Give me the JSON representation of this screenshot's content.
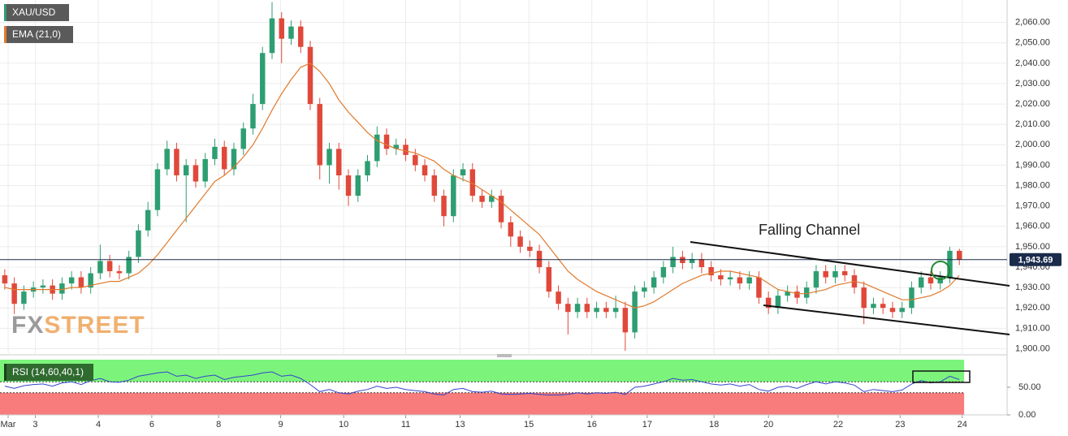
{
  "chart_data": [
    {
      "type": "candlestick",
      "name": "XAU/USD",
      "up_color": "#2e9e72",
      "down_color": "#e0483a",
      "open": [
        1936,
        1932,
        1922,
        1928,
        1930,
        1931,
        1927,
        1932,
        1935,
        1930,
        1937,
        1943,
        1938,
        1937,
        1945,
        1958,
        1968,
        1988,
        1998,
        1985,
        1990,
        1982,
        1993,
        1999,
        1988,
        1998,
        2008,
        2020,
        2045,
        2062,
        2052,
        2058,
        2048,
        2020,
        1990,
        1998,
        1985,
        1975,
        1985,
        1992,
        2005,
        1998,
        2000,
        1995,
        1990,
        1985,
        1975,
        1965,
        1985,
        1988,
        1975,
        1972,
        1975,
        1962,
        1955,
        1950,
        1948,
        1940,
        1928,
        1922,
        1918,
        1922,
        1918,
        1920,
        1918,
        1920,
        1908,
        1928,
        1930,
        1935,
        1940,
        1945,
        1942,
        1944,
        1940,
        1936,
        1934,
        1935,
        1932,
        1935,
        1925,
        1920,
        1926,
        1928,
        1925,
        1930,
        1938,
        1935,
        1938,
        1936,
        1930,
        1920,
        1922,
        1920,
        1918,
        1920,
        1930,
        1935,
        1932,
        1935,
        1948
      ],
      "high": [
        1939,
        1935,
        1931,
        1933,
        1934,
        1934,
        1935,
        1938,
        1938,
        1940,
        1951,
        1946,
        1941,
        1948,
        1961,
        1972,
        1991,
        2002,
        2001,
        1993,
        1993,
        1996,
        2003,
        2002,
        2001,
        2011,
        2025,
        2048,
        2070,
        2065,
        2061,
        2061,
        2051,
        2023,
        2001,
        2001,
        1988,
        1988,
        1995,
        2009,
        2008,
        2003,
        2003,
        1998,
        1993,
        1988,
        1978,
        1988,
        1991,
        1991,
        1978,
        1978,
        1978,
        1965,
        1958,
        1953,
        1951,
        1943,
        1931,
        1925,
        1925,
        1925,
        1923,
        1923,
        1926,
        1923,
        1931,
        1933,
        1938,
        1943,
        1950,
        1948,
        1947,
        1947,
        1943,
        1939,
        1938,
        1938,
        1938,
        1938,
        1928,
        1929,
        1931,
        1931,
        1933,
        1941,
        1941,
        1941,
        1941,
        1939,
        1933,
        1925,
        1925,
        1923,
        1923,
        1933,
        1938,
        1938,
        1938,
        1950,
        1949
      ],
      "low": [
        1929,
        1917,
        1919,
        1925,
        1927,
        1924,
        1924,
        1929,
        1927,
        1927,
        1934,
        1935,
        1934,
        1934,
        1942,
        1955,
        1965,
        1985,
        1982,
        1962,
        1979,
        1979,
        1990,
        1985,
        1985,
        1995,
        2005,
        2017,
        2042,
        2040,
        2049,
        2045,
        2017,
        1983,
        1981,
        1978,
        1970,
        1972,
        1982,
        1989,
        1995,
        1995,
        1992,
        1987,
        1982,
        1972,
        1960,
        1962,
        1982,
        1972,
        1969,
        1969,
        1959,
        1950,
        1947,
        1945,
        1937,
        1925,
        1919,
        1907,
        1915,
        1915,
        1915,
        1915,
        1915,
        1899,
        1905,
        1925,
        1927,
        1932,
        1937,
        1939,
        1939,
        1937,
        1933,
        1931,
        1931,
        1929,
        1929,
        1922,
        1917,
        1917,
        1923,
        1922,
        1922,
        1927,
        1932,
        1932,
        1933,
        1927,
        1912,
        1917,
        1917,
        1915,
        1915,
        1917,
        1927,
        1929,
        1929,
        1932,
        1941
      ],
      "close": [
        1932,
        1922,
        1928,
        1930,
        1931,
        1927,
        1932,
        1935,
        1930,
        1937,
        1943,
        1938,
        1937,
        1945,
        1958,
        1968,
        1988,
        1998,
        1985,
        1990,
        1982,
        1993,
        1999,
        1988,
        1998,
        2008,
        2020,
        2045,
        2062,
        2052,
        2058,
        2048,
        2020,
        1990,
        1998,
        1985,
        1975,
        1985,
        1992,
        2005,
        1998,
        2000,
        1995,
        1990,
        1985,
        1975,
        1965,
        1985,
        1988,
        1975,
        1972,
        1975,
        1962,
        1955,
        1950,
        1948,
        1940,
        1928,
        1922,
        1918,
        1922,
        1918,
        1920,
        1918,
        1920,
        1908,
        1928,
        1930,
        1935,
        1940,
        1945,
        1942,
        1944,
        1940,
        1936,
        1934,
        1935,
        1932,
        1935,
        1925,
        1920,
        1926,
        1928,
        1925,
        1930,
        1938,
        1935,
        1938,
        1936,
        1930,
        1920,
        1922,
        1920,
        1918,
        1920,
        1930,
        1935,
        1932,
        1935,
        1948,
        1943.69
      ],
      "ema": {
        "name": "EMA (21,0)",
        "color": "#e07a2c",
        "values": [
          1930,
          1929,
          1929,
          1929,
          1929,
          1929,
          1929,
          1930,
          1930,
          1931,
          1932,
          1933,
          1933,
          1935,
          1937,
          1941,
          1946,
          1952,
          1958,
          1964,
          1970,
          1976,
          1982,
          1985,
          1989,
          1994,
          2000,
          2008,
          2017,
          2025,
          2032,
          2038,
          2040,
          2036,
          2030,
          2022,
          2016,
          2011,
          2006,
          2002,
          2000,
          1998,
          1997,
          1996,
          1994,
          1992,
          1988,
          1985,
          1983,
          1981,
          1978,
          1975,
          1972,
          1968,
          1964,
          1960,
          1956,
          1950,
          1944,
          1938,
          1934,
          1931,
          1928,
          1926,
          1924,
          1922,
          1920,
          1921,
          1923,
          1926,
          1929,
          1932,
          1934,
          1936,
          1937,
          1938,
          1938,
          1937,
          1936,
          1935,
          1932,
          1929,
          1928,
          1927,
          1927,
          1928,
          1929,
          1931,
          1932,
          1933,
          1932,
          1930,
          1928,
          1926,
          1924,
          1924,
          1925,
          1926,
          1928,
          1931,
          1936
        ]
      },
      "last_price": {
        "value": 1943.69,
        "label": "1,943.69"
      },
      "annotation": "Falling Channel",
      "watermark": [
        "FX",
        "STREET"
      ],
      "grid": true,
      "xlim": [
        -0.5,
        105
      ],
      "ylim": [
        1897,
        2071
      ],
      "yticks": [
        {
          "value": 1900,
          "label": "1,900.00"
        },
        {
          "value": 1910,
          "label": "1,910.00"
        },
        {
          "value": 1920,
          "label": "1,920.00"
        },
        {
          "value": 1930,
          "label": "1,930.00"
        },
        {
          "value": 1940,
          "label": "1,940.00"
        },
        {
          "value": 1950,
          "label": "1,950.00"
        },
        {
          "value": 1960,
          "label": "1,960.00"
        },
        {
          "value": 1970,
          "label": "1,970.00"
        },
        {
          "value": 1980,
          "label": "1,980.00"
        },
        {
          "value": 1990,
          "label": "1,990.00"
        },
        {
          "value": 2000,
          "label": "2,000.00"
        },
        {
          "value": 2010,
          "label": "2,010.00"
        },
        {
          "value": 2020,
          "label": "2,020.00"
        },
        {
          "value": 2030,
          "label": "2,030.00"
        },
        {
          "value": 2040,
          "label": "2,040.00"
        },
        {
          "value": 2050,
          "label": "2,050.00"
        },
        {
          "value": 2060,
          "label": "2,060.00"
        }
      ]
    },
    {
      "type": "line",
      "name": "RSI (14,60,40,1)",
      "color": "#3344cc",
      "values": [
        52,
        48,
        53,
        55,
        56,
        52,
        58,
        60,
        55,
        62,
        66,
        60,
        59,
        63,
        70,
        73,
        76,
        78,
        70,
        72,
        66,
        70,
        72,
        64,
        68,
        70,
        72,
        76,
        78,
        70,
        72,
        66,
        55,
        42,
        46,
        40,
        38,
        43,
        46,
        52,
        48,
        50,
        46,
        44,
        42,
        38,
        36,
        46,
        48,
        42,
        41,
        43,
        38,
        37,
        38,
        39,
        37,
        36,
        36,
        37,
        40,
        38,
        40,
        39,
        41,
        37,
        50,
        52,
        56,
        60,
        66,
        63,
        64,
        60,
        56,
        54,
        56,
        52,
        55,
        46,
        43,
        50,
        52,
        48,
        55,
        60,
        56,
        60,
        58,
        54,
        42,
        46,
        44,
        42,
        45,
        56,
        62,
        58,
        60,
        70,
        64
      ],
      "upper_band": 60,
      "lower_band": 40,
      "upper_color": "#7cf47c",
      "lower_color": "#f87c7c",
      "xlim": [
        -0.5,
        105
      ],
      "ylim": [
        0,
        100
      ],
      "yticks": [
        {
          "value": 0,
          "label": "0.00"
        },
        {
          "value": 50,
          "label": "50.00"
        }
      ],
      "xticks": [
        {
          "value": 0.35,
          "label": "Mar"
        },
        {
          "value": 3.2,
          "label": "3"
        },
        {
          "value": 9.8,
          "label": "4"
        },
        {
          "value": 15.4,
          "label": "6"
        },
        {
          "value": 22.4,
          "label": "8"
        },
        {
          "value": 28.9,
          "label": "9"
        },
        {
          "value": 35.5,
          "label": "10"
        },
        {
          "value": 42,
          "label": "11"
        },
        {
          "value": 47.7,
          "label": "13"
        },
        {
          "value": 54.9,
          "label": "15"
        },
        {
          "value": 61.5,
          "label": "16"
        },
        {
          "value": 67.3,
          "label": "17"
        },
        {
          "value": 74.3,
          "label": "18"
        },
        {
          "value": 80,
          "label": "20"
        },
        {
          "value": 87.3,
          "label": "22"
        },
        {
          "value": 93.8,
          "label": "23"
        },
        {
          "value": 100.3,
          "label": "24"
        }
      ]
    }
  ]
}
